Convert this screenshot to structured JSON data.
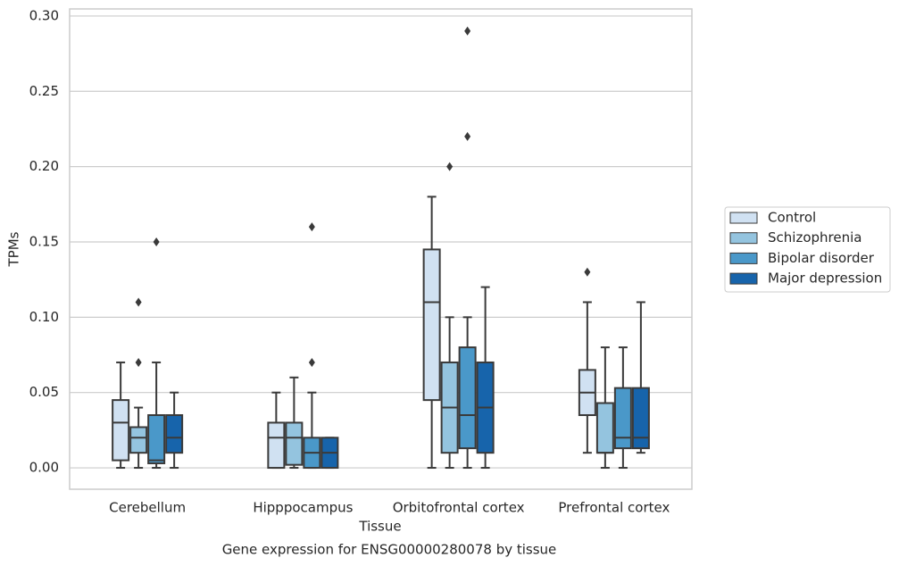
{
  "chart_data": {
    "type": "boxplot",
    "title": "Gene expression for ENSG00000280078 by tissue",
    "x_label": "Tissue",
    "y_label": "TPMs",
    "categories": [
      "Cerebellum",
      "Hipppocampus",
      "Orbitofrontal cortex",
      "Prefrontal cortex"
    ],
    "ylim": [
      -0.0142,
      0.3047
    ],
    "yticks": [
      {
        "value": 0,
        "label": "0.00"
      },
      {
        "value": 0.05,
        "label": "0.05"
      },
      {
        "value": 0.1,
        "label": "0.10"
      },
      {
        "value": 0.15,
        "label": "0.15"
      },
      {
        "value": 0.2,
        "label": "0.20"
      },
      {
        "value": 0.25,
        "label": "0.25"
      },
      {
        "value": 0.3,
        "label": "0.30"
      }
    ],
    "grid": true,
    "legend": "right",
    "series": [
      {
        "name": "Control",
        "color": "#d0e1f2",
        "low": [
          0,
          0,
          0,
          0.01
        ],
        "q1": [
          0.005,
          0,
          0.045,
          0.035
        ],
        "median": [
          0.03,
          0.02,
          0.11,
          0.05
        ],
        "q3": [
          0.045,
          0.03,
          0.145,
          0.065
        ],
        "high": [
          0.07,
          0.05,
          0.18,
          0.11
        ],
        "outliers": [
          [],
          [],
          [],
          [
            0.13
          ]
        ]
      },
      {
        "name": "Schizophrenia",
        "color": "#94c4df",
        "low": [
          0,
          0,
          0,
          0
        ],
        "q1": [
          0.01,
          0.002,
          0.01,
          0.01
        ],
        "median": [
          0.02,
          0.02,
          0.04,
          0.01
        ],
        "q3": [
          0.027,
          0.03,
          0.07,
          0.043
        ],
        "high": [
          0.04,
          0.06,
          0.1,
          0.08
        ],
        "outliers": [
          [
            0.11,
            0.07
          ],
          [],
          [
            0.2
          ],
          []
        ]
      },
      {
        "name": "Bipolar disorder",
        "color": "#4a98c9",
        "low": [
          0,
          0,
          0,
          0
        ],
        "q1": [
          0.003,
          0,
          0.013,
          0.013
        ],
        "median": [
          0.005,
          0.01,
          0.035,
          0.02
        ],
        "q3": [
          0.035,
          0.02,
          0.08,
          0.053
        ],
        "high": [
          0.07,
          0.05,
          0.1,
          0.08
        ],
        "outliers": [
          [
            0.15
          ],
          [
            0.16,
            0.07
          ],
          [
            0.22,
            0.29
          ],
          []
        ]
      },
      {
        "name": "Major depression",
        "color": "#1764ab",
        "low": [
          0,
          0,
          0,
          0.01
        ],
        "q1": [
          0.01,
          0,
          0.01,
          0.013
        ],
        "median": [
          0.02,
          0.01,
          0.04,
          0.02
        ],
        "q3": [
          0.035,
          0.02,
          0.07,
          0.053
        ],
        "high": [
          0.05,
          0.02,
          0.12,
          0.11
        ],
        "outliers": [
          [],
          [],
          [],
          []
        ]
      }
    ]
  }
}
